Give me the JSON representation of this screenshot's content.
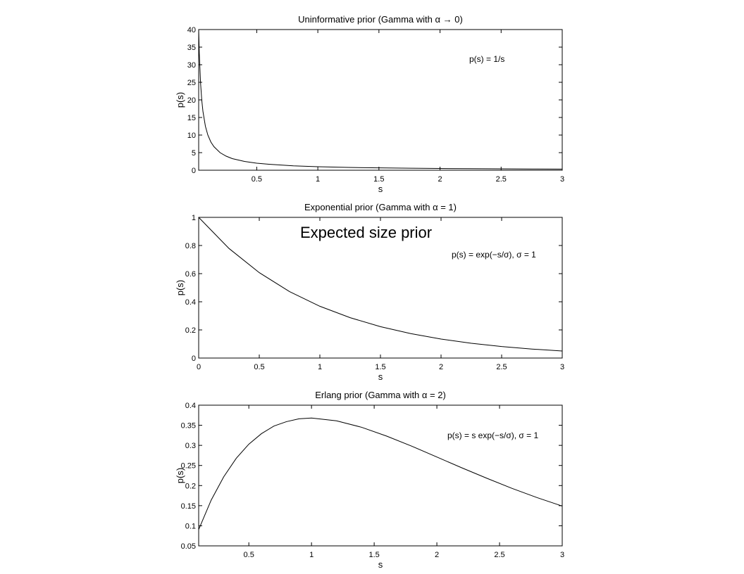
{
  "overlay_text": "Expected size prior",
  "chart_data": [
    {
      "type": "line",
      "title": "Uninformative prior (Gamma with α → 0)",
      "xlabel": "s",
      "ylabel": "p(s)",
      "annotation": "p(s) = 1/s",
      "xlim": [
        0.025,
        3
      ],
      "ylim": [
        0,
        40
      ],
      "xticks": [
        0.5,
        1,
        1.5,
        2,
        2.5,
        3
      ],
      "xtick_labels": [
        "0.5",
        "1",
        "1.5",
        "2",
        "2.5",
        "3"
      ],
      "yticks": [
        0,
        5,
        10,
        15,
        20,
        25,
        30,
        35,
        40
      ],
      "ytick_labels": [
        "0",
        "5",
        "10",
        "15",
        "20",
        "25",
        "30",
        "35",
        "40"
      ],
      "grid": false,
      "series": [
        {
          "x": [
            0.025,
            0.03,
            0.04,
            0.05,
            0.06,
            0.08,
            0.1,
            0.125,
            0.15,
            0.2,
            0.25,
            0.3,
            0.4,
            0.5,
            0.6,
            0.8,
            1.0,
            1.25,
            1.5,
            1.75,
            2.0,
            2.25,
            2.5,
            2.75,
            3.0
          ],
          "y": [
            40.0,
            33.3,
            25.0,
            20.0,
            16.7,
            12.5,
            10.0,
            8.0,
            6.7,
            5.0,
            4.0,
            3.3,
            2.5,
            2.0,
            1.7,
            1.25,
            1.0,
            0.8,
            0.67,
            0.57,
            0.5,
            0.44,
            0.4,
            0.36,
            0.33
          ]
        }
      ]
    },
    {
      "type": "line",
      "title": "Exponential prior (Gamma with α = 1)",
      "xlabel": "s",
      "ylabel": "p(s)",
      "annotation": "p(s) = exp(−s/σ), σ = 1",
      "xlim": [
        0,
        3
      ],
      "ylim": [
        0,
        1
      ],
      "xticks": [
        0,
        0.5,
        1,
        1.5,
        2,
        2.5,
        3
      ],
      "xtick_labels": [
        "0",
        "0.5",
        "1",
        "1.5",
        "2",
        "2.5",
        "3"
      ],
      "yticks": [
        0,
        0.2,
        0.4,
        0.6,
        0.8,
        1
      ],
      "ytick_labels": [
        "0",
        "0.2",
        "0.4",
        "0.6",
        "0.8",
        "1"
      ],
      "grid": false,
      "series": [
        {
          "x": [
            0,
            0.25,
            0.5,
            0.75,
            1.0,
            1.25,
            1.5,
            1.75,
            2.0,
            2.25,
            2.5,
            2.75,
            3.0
          ],
          "y": [
            1.0,
            0.779,
            0.607,
            0.472,
            0.368,
            0.287,
            0.223,
            0.174,
            0.135,
            0.105,
            0.082,
            0.064,
            0.05
          ]
        }
      ]
    },
    {
      "type": "line",
      "title": "Erlang prior (Gamma with α = 2)",
      "xlabel": "s",
      "ylabel": "p(s)",
      "annotation": "p(s) = s exp(−s/σ), σ = 1",
      "xlim": [
        0.1,
        3
      ],
      "ylim": [
        0.05,
        0.4
      ],
      "xticks": [
        0.5,
        1,
        1.5,
        2,
        2.5,
        3
      ],
      "xtick_labels": [
        "0.5",
        "1",
        "1.5",
        "2",
        "2.5",
        "3"
      ],
      "yticks": [
        0.05,
        0.1,
        0.15,
        0.2,
        0.25,
        0.3,
        0.35,
        0.4
      ],
      "ytick_labels": [
        "0.05",
        "0.1",
        "0.15",
        "0.2",
        "0.25",
        "0.3",
        "0.35",
        "0.4"
      ],
      "grid": false,
      "series": [
        {
          "x": [
            0.1,
            0.2,
            0.3,
            0.4,
            0.5,
            0.6,
            0.7,
            0.8,
            0.9,
            1.0,
            1.2,
            1.4,
            1.6,
            1.8,
            2.0,
            2.2,
            2.4,
            2.6,
            2.8,
            3.0
          ],
          "y": [
            0.0905,
            0.164,
            0.222,
            0.268,
            0.303,
            0.329,
            0.348,
            0.359,
            0.366,
            0.368,
            0.361,
            0.345,
            0.323,
            0.298,
            0.271,
            0.244,
            0.218,
            0.193,
            0.17,
            0.149
          ]
        }
      ]
    }
  ]
}
